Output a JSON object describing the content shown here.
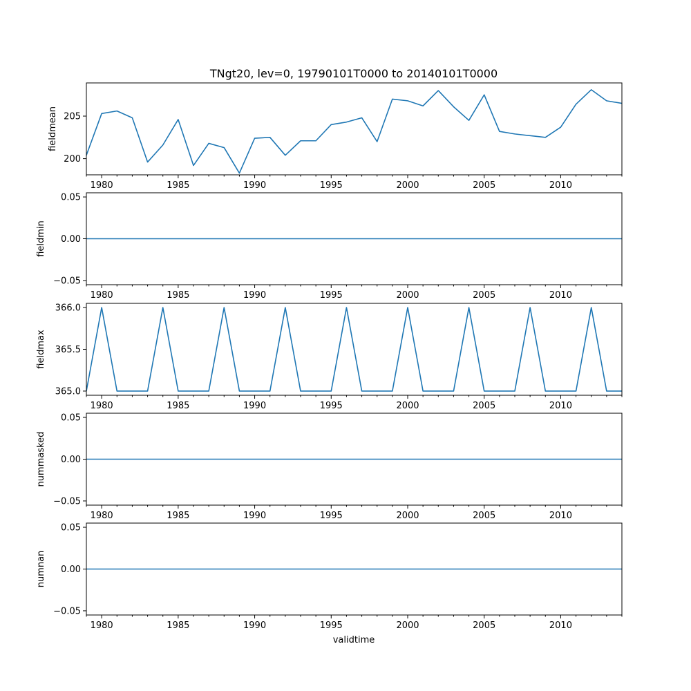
{
  "figure": {
    "title": "TNgt20, lev=0, 19790101T0000 to 20140101T0000",
    "xlabel": "validtime"
  },
  "chart_data": [
    {
      "type": "line",
      "ylabel": "fieldmean",
      "xlim": [
        1979,
        2014
      ],
      "ylim": [
        198.1,
        208.9
      ],
      "yticks": [
        200,
        205
      ],
      "ytick_labels": [
        "200",
        "205"
      ],
      "xticks": [
        1980,
        1985,
        1990,
        1995,
        2000,
        2005,
        2010
      ],
      "xtick_labels": [
        "1980",
        "1985",
        "1990",
        "1995",
        "2000",
        "2005",
        "2010"
      ],
      "color": "#1f77b4",
      "x": [
        1979,
        1980,
        1981,
        1982,
        1983,
        1984,
        1985,
        1986,
        1987,
        1988,
        1989,
        1990,
        1991,
        1992,
        1993,
        1994,
        1995,
        1996,
        1997,
        1998,
        1999,
        2000,
        2001,
        2002,
        2003,
        2004,
        2005,
        2006,
        2007,
        2008,
        2009,
        2010,
        2011,
        2012,
        2013,
        2014
      ],
      "y": [
        200.4,
        205.3,
        205.6,
        204.8,
        199.6,
        201.6,
        204.6,
        199.2,
        201.8,
        201.3,
        198.3,
        202.4,
        202.5,
        200.4,
        202.1,
        202.1,
        204.0,
        204.3,
        204.8,
        202.0,
        207.0,
        206.8,
        206.2,
        208.0,
        206.1,
        204.5,
        207.5,
        203.2,
        202.9,
        202.7,
        202.5,
        203.7,
        206.4,
        208.1,
        206.8,
        206.5
      ]
    },
    {
      "type": "line",
      "ylabel": "fieldmin",
      "xlim": [
        1979,
        2014
      ],
      "ylim": [
        -0.055,
        0.055
      ],
      "yticks": [
        -0.05,
        0.0,
        0.05
      ],
      "ytick_labels": [
        "−0.05",
        "0.00",
        "0.05"
      ],
      "xticks": [
        1980,
        1985,
        1990,
        1995,
        2000,
        2005,
        2010
      ],
      "xtick_labels": [
        "1980",
        "1985",
        "1990",
        "1995",
        "2000",
        "2005",
        "2010"
      ],
      "color": "#1f77b4",
      "x": [
        1979,
        2014
      ],
      "y": [
        0,
        0
      ]
    },
    {
      "type": "line",
      "ylabel": "fieldmax",
      "xlim": [
        1979,
        2014
      ],
      "ylim": [
        364.95,
        366.05
      ],
      "yticks": [
        365.0,
        365.5,
        366.0
      ],
      "ytick_labels": [
        "365.0",
        "365.5",
        "366.0"
      ],
      "xticks": [
        1980,
        1985,
        1990,
        1995,
        2000,
        2005,
        2010
      ],
      "xtick_labels": [
        "1980",
        "1985",
        "1990",
        "1995",
        "2000",
        "2005",
        "2010"
      ],
      "color": "#1f77b4",
      "x": [
        1979,
        1980,
        1981,
        1982,
        1983,
        1984,
        1985,
        1986,
        1987,
        1988,
        1989,
        1990,
        1991,
        1992,
        1993,
        1994,
        1995,
        1996,
        1997,
        1998,
        1999,
        2000,
        2001,
        2002,
        2003,
        2004,
        2005,
        2006,
        2007,
        2008,
        2009,
        2010,
        2011,
        2012,
        2013,
        2014
      ],
      "y": [
        365,
        366,
        365,
        365,
        365,
        366,
        365,
        365,
        365,
        366,
        365,
        365,
        365,
        366,
        365,
        365,
        365,
        366,
        365,
        365,
        365,
        366,
        365,
        365,
        365,
        366,
        365,
        365,
        365,
        366,
        365,
        365,
        365,
        366,
        365,
        365
      ]
    },
    {
      "type": "line",
      "ylabel": "nummasked",
      "xlim": [
        1979,
        2014
      ],
      "ylim": [
        -0.055,
        0.055
      ],
      "yticks": [
        -0.05,
        0.0,
        0.05
      ],
      "ytick_labels": [
        "−0.05",
        "0.00",
        "0.05"
      ],
      "xticks": [
        1980,
        1985,
        1990,
        1995,
        2000,
        2005,
        2010
      ],
      "xtick_labels": [
        "1980",
        "1985",
        "1990",
        "1995",
        "2000",
        "2005",
        "2010"
      ],
      "color": "#1f77b4",
      "x": [
        1979,
        2014
      ],
      "y": [
        0,
        0
      ]
    },
    {
      "type": "line",
      "ylabel": "numnan",
      "xlim": [
        1979,
        2014
      ],
      "ylim": [
        -0.055,
        0.055
      ],
      "yticks": [
        -0.05,
        0.0,
        0.05
      ],
      "ytick_labels": [
        "−0.05",
        "0.00",
        "0.05"
      ],
      "xticks": [
        1980,
        1985,
        1990,
        1995,
        2000,
        2005,
        2010
      ],
      "xtick_labels": [
        "1980",
        "1985",
        "1990",
        "1995",
        "2000",
        "2005",
        "2010"
      ],
      "color": "#1f77b4",
      "x": [
        1979,
        2014
      ],
      "y": [
        0,
        0
      ]
    }
  ]
}
